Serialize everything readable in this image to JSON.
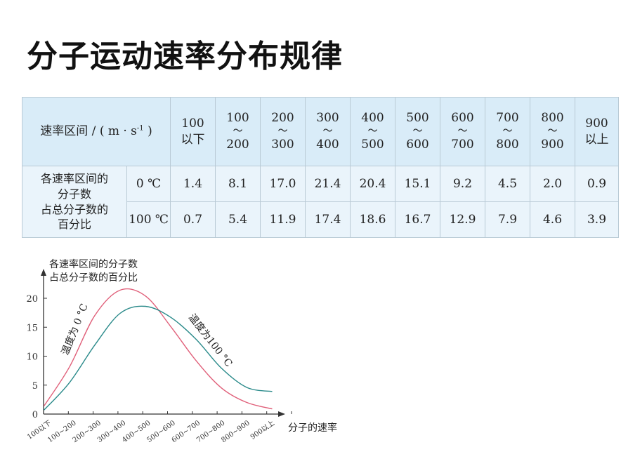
{
  "title": "分子运动速率分布规律",
  "table": {
    "header_label": "速率区间 / ( m · s",
    "header_exp": "-1",
    "header_label_end": " )",
    "columns": [
      {
        "top": "100",
        "mid": "",
        "bot": "以下"
      },
      {
        "top": "100",
        "mid": "～",
        "bot": "200"
      },
      {
        "top": "200",
        "mid": "～",
        "bot": "300"
      },
      {
        "top": "300",
        "mid": "～",
        "bot": "400"
      },
      {
        "top": "400",
        "mid": "～",
        "bot": "500"
      },
      {
        "top": "500",
        "mid": "～",
        "bot": "600"
      },
      {
        "top": "600",
        "mid": "～",
        "bot": "700"
      },
      {
        "top": "700",
        "mid": "～",
        "bot": "800"
      },
      {
        "top": "800",
        "mid": "～",
        "bot": "900"
      },
      {
        "top": "900",
        "mid": "",
        "bot": "以上"
      }
    ],
    "row_label": [
      "各速率区间的",
      "分子数",
      "占总分子数的",
      "百分比"
    ],
    "rows": [
      {
        "temp": "0 ℃",
        "values": [
          "1.4",
          "8.1",
          "17.0",
          "21.4",
          "20.4",
          "15.1",
          "9.2",
          "4.5",
          "2.0",
          "0.9"
        ]
      },
      {
        "temp": "100 ℃",
        "values": [
          "0.7",
          "5.4",
          "11.9",
          "17.4",
          "18.6",
          "16.7",
          "12.9",
          "7.9",
          "4.6",
          "3.9"
        ]
      }
    ]
  },
  "chart_data": {
    "type": "line",
    "ylabel_lines": [
      "各速率区间的分子数",
      "占总分子数的百分比"
    ],
    "xlabel": "分子的速率",
    "categories": [
      "100以下",
      "100~200",
      "200~300",
      "300~400",
      "400~500",
      "500~600",
      "600~700",
      "700~800",
      "800~900",
      "900以上"
    ],
    "yticks": [
      "0",
      "5",
      "10",
      "15",
      "20"
    ],
    "ylim": [
      0,
      25
    ],
    "series": [
      {
        "name": "温度为 0 °C",
        "color": "#e0607a",
        "values": [
          1.4,
          8.1,
          17.0,
          21.4,
          20.4,
          15.1,
          9.2,
          4.5,
          2.0,
          0.9
        ]
      },
      {
        "name": "温度为100 °C",
        "color": "#2a8a8a",
        "values": [
          0.7,
          5.4,
          11.9,
          17.4,
          18.6,
          16.7,
          12.9,
          7.9,
          4.6,
          3.9
        ]
      }
    ]
  }
}
